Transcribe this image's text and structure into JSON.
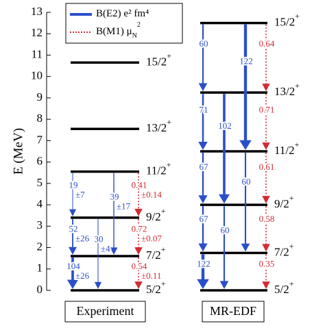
{
  "chart_data": {
    "type": "level-scheme",
    "ylabel": "E (MeV)",
    "ylim": [
      0,
      13
    ],
    "yticks": [
      0,
      1,
      2,
      3,
      4,
      5,
      6,
      7,
      8,
      9,
      10,
      11,
      12,
      13
    ],
    "legend": [
      {
        "name": "B(E2)",
        "unit": "e² fm⁴",
        "color": "#2b4fc9",
        "style": "solid"
      },
      {
        "name": "B(M1)",
        "unit_base": "μ",
        "unit_sub": "N",
        "unit_sup": "2",
        "color": "#d42a33",
        "style": "dotted"
      }
    ],
    "panels": [
      {
        "label": "Experiment",
        "levels": [
          {
            "spin": "5/2",
            "parity": "+",
            "energy": 0
          },
          {
            "spin": "7/2",
            "parity": "+",
            "energy": 1.6
          },
          {
            "spin": "9/2",
            "parity": "+",
            "energy": 3.4
          },
          {
            "spin": "11/2",
            "parity": "+",
            "energy": 5.55
          },
          {
            "spin": "13/2",
            "parity": "+",
            "energy": 7.55
          },
          {
            "spin": "15/2",
            "parity": "+",
            "energy": 10.65
          }
        ],
        "transitions": [
          {
            "from": 3,
            "to": 2,
            "legend": 0,
            "value": 19,
            "uncertainty": 7,
            "uncertainty_label": "±7"
          },
          {
            "from": 3,
            "to": 1,
            "legend": 0,
            "value": 39,
            "uncertainty": 17,
            "uncertainty_label": "±17"
          },
          {
            "from": 3,
            "to": 2,
            "legend": 1,
            "value": 0.41,
            "uncertainty": 0.14,
            "uncertainty_label": "±0.14"
          },
          {
            "from": 2,
            "to": 1,
            "legend": 0,
            "value": 52,
            "uncertainty": 26,
            "uncertainty_label": "±26"
          },
          {
            "from": 2,
            "to": 0,
            "legend": 0,
            "value": 30,
            "uncertainty": 4,
            "uncertainty_label": "±4"
          },
          {
            "from": 2,
            "to": 1,
            "legend": 1,
            "value": 0.72,
            "uncertainty": 0.07,
            "uncertainty_label": "±0.07"
          },
          {
            "from": 1,
            "to": 0,
            "legend": 0,
            "value": 104,
            "uncertainty": 26,
            "uncertainty_label": "±26"
          },
          {
            "from": 1,
            "to": 0,
            "legend": 1,
            "value": 0.54,
            "uncertainty": 0.11,
            "uncertainty_label": "±0.11"
          }
        ]
      },
      {
        "label": "MR-EDF",
        "levels": [
          {
            "spin": "5/2",
            "parity": "+",
            "energy": 0
          },
          {
            "spin": "7/2",
            "parity": "+",
            "energy": 1.75
          },
          {
            "spin": "9/2",
            "parity": "+",
            "energy": 4.0
          },
          {
            "spin": "11/2",
            "parity": "+",
            "energy": 6.5
          },
          {
            "spin": "13/2",
            "parity": "+",
            "energy": 9.25
          },
          {
            "spin": "15/2",
            "parity": "+",
            "energy": 12.5
          }
        ],
        "transitions": [
          {
            "from": 5,
            "to": 4,
            "legend": 0,
            "value": 60
          },
          {
            "from": 5,
            "to": 3,
            "legend": 0,
            "value": 122
          },
          {
            "from": 5,
            "to": 4,
            "legend": 1,
            "value": 0.64
          },
          {
            "from": 4,
            "to": 3,
            "legend": 0,
            "value": 71
          },
          {
            "from": 4,
            "to": 2,
            "legend": 0,
            "value": 102
          },
          {
            "from": 4,
            "to": 3,
            "legend": 1,
            "value": 0.71
          },
          {
            "from": 3,
            "to": 2,
            "legend": 0,
            "value": 67
          },
          {
            "from": 3,
            "to": 1,
            "legend": 0,
            "value": 60
          },
          {
            "from": 3,
            "to": 2,
            "legend": 1,
            "value": 0.61
          },
          {
            "from": 2,
            "to": 1,
            "legend": 0,
            "value": 67
          },
          {
            "from": 2,
            "to": 0,
            "legend": 0,
            "value": 60
          },
          {
            "from": 2,
            "to": 1,
            "legend": 1,
            "value": 0.58
          },
          {
            "from": 1,
            "to": 0,
            "legend": 0,
            "value": 122
          },
          {
            "from": 1,
            "to": 0,
            "legend": 1,
            "value": 0.35
          }
        ]
      }
    ]
  }
}
